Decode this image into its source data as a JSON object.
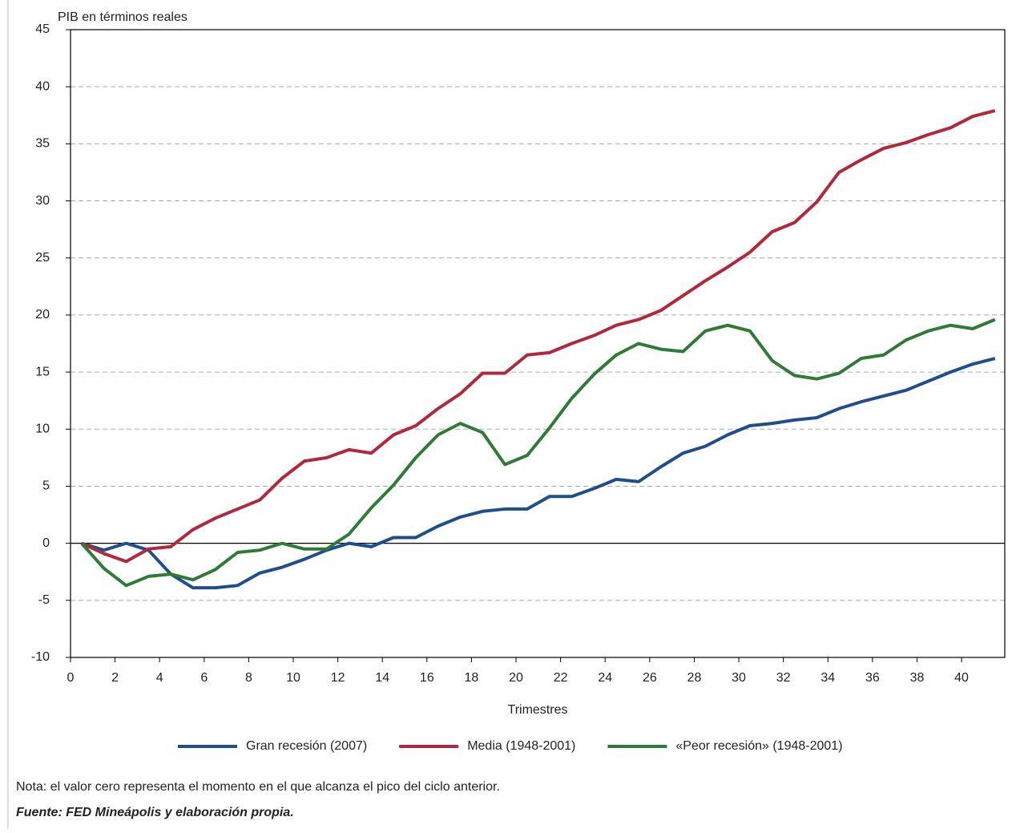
{
  "chart_data": {
    "type": "line",
    "y_label": "PIB en términos reales",
    "x_label": "Trimestres",
    "x": [
      0.5,
      1.5,
      2.5,
      3.5,
      4.5,
      5.5,
      6.5,
      7.5,
      8.5,
      9.5,
      10.5,
      11.5,
      12.5,
      13.5,
      14.5,
      15.5,
      16.5,
      17.5,
      18.5,
      19.5,
      20.5,
      21.5,
      22.5,
      23.5,
      24.5,
      25.5,
      26.5,
      27.5,
      28.5,
      29.5,
      30.5,
      31.5,
      32.5,
      33.5,
      34.5,
      35.5,
      36.5,
      37.5,
      38.5,
      39.5,
      40.5,
      41.5
    ],
    "series": [
      {
        "name": "Gran recesión (2007)",
        "color": "#1f4e8c",
        "values": [
          0,
          -0.6,
          0,
          -0.6,
          -2.7,
          -3.9,
          -3.9,
          -3.7,
          -2.6,
          -2.1,
          -1.4,
          -0.6,
          0,
          -0.3,
          0.5,
          0.5,
          1.5,
          2.3,
          2.8,
          3.0,
          3.0,
          4.1,
          4.1,
          4.8,
          5.6,
          5.4,
          6.7,
          7.9,
          8.5,
          9.5,
          10.3,
          10.5,
          10.8,
          11.0,
          11.8,
          12.4,
          12.9,
          13.4,
          14.2,
          15.0,
          15.7,
          16.2
        ]
      },
      {
        "name": "Media (1948-2001)",
        "color": "#b0283a",
        "values": [
          0,
          -0.9,
          -1.6,
          -0.5,
          -0.3,
          1.2,
          2.2,
          3.0,
          3.8,
          5.7,
          7.2,
          7.5,
          8.2,
          7.9,
          9.5,
          10.3,
          11.8,
          13.1,
          14.9,
          14.9,
          16.5,
          16.7,
          17.5,
          18.2,
          19.1,
          19.6,
          20.4,
          21.7,
          23.0,
          24.2,
          25.5,
          27.3,
          28.1,
          29.9,
          32.5,
          33.6,
          34.6,
          35.1,
          35.8,
          36.4,
          37.4,
          37.9
        ]
      },
      {
        "name": "«Peor recesión» (1948-2001)",
        "color": "#2e7a36",
        "values": [
          0,
          -2.2,
          -3.7,
          -2.9,
          -2.7,
          -3.2,
          -2.3,
          -0.8,
          -0.6,
          0,
          -0.5,
          -0.5,
          0.8,
          3.1,
          5.1,
          7.5,
          9.5,
          10.5,
          9.7,
          6.9,
          7.7,
          10.1,
          12.7,
          14.8,
          16.5,
          17.5,
          17.0,
          16.8,
          18.6,
          19.1,
          18.6,
          16.0,
          14.7,
          14.4,
          14.9,
          16.2,
          16.5,
          17.8,
          18.6,
          19.1,
          18.8,
          19.6
        ]
      }
    ],
    "xlim": [
      0,
      41.94
    ],
    "xticks": [
      0,
      2,
      4,
      6,
      8,
      10,
      12,
      14,
      16,
      18,
      20,
      22,
      24,
      26,
      28,
      30,
      32,
      34,
      36,
      38,
      40
    ],
    "ylim": [
      -10,
      45
    ],
    "yticks": [
      -10,
      -5,
      0,
      5,
      10,
      15,
      20,
      25,
      30,
      35,
      40,
      45
    ],
    "grid": true,
    "zero_line": true,
    "legend": "bottom",
    "note": "Nota: el valor cero representa el momento en el que alcanza el pico del ciclo anterior.",
    "source": "Fuente: FED Mineápolis y elaboración propia."
  }
}
